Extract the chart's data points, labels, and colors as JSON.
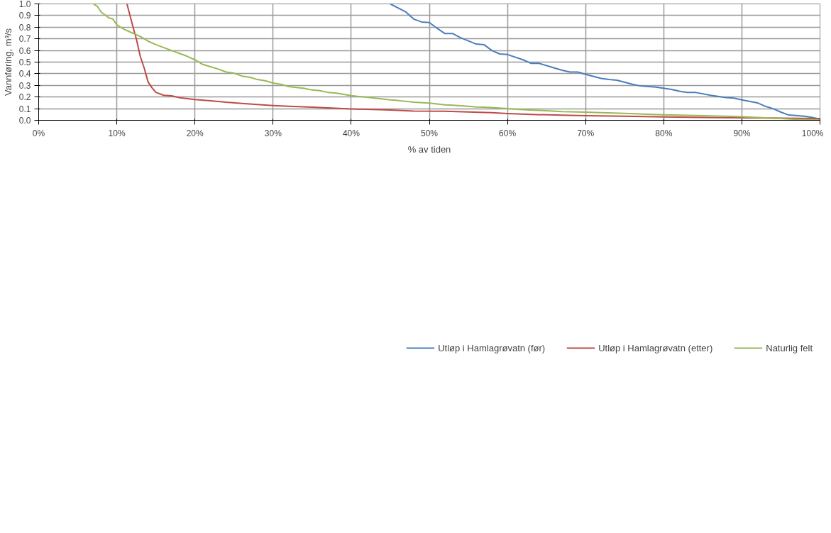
{
  "chart_data": {
    "type": "line",
    "xlabel": "% av tiden",
    "ylabel": "Vannføring, m³/s",
    "xlim": [
      0,
      100
    ],
    "ylim": [
      0,
      1.0
    ],
    "xticks": [
      {
        "value": 0,
        "label": "0%"
      },
      {
        "value": 10,
        "label": "10%"
      },
      {
        "value": 20,
        "label": "20%"
      },
      {
        "value": 30,
        "label": "30%"
      },
      {
        "value": 40,
        "label": "40%"
      },
      {
        "value": 50,
        "label": "50%"
      },
      {
        "value": 60,
        "label": "60%"
      },
      {
        "value": 70,
        "label": "70%"
      },
      {
        "value": 80,
        "label": "80%"
      },
      {
        "value": 90,
        "label": "90%"
      },
      {
        "value": 100,
        "label": "100%"
      }
    ],
    "yticks": [
      {
        "value": 0,
        "label": "0.0"
      },
      {
        "value": 0.1,
        "label": "0.1"
      },
      {
        "value": 0.2,
        "label": "0.2"
      },
      {
        "value": 0.3,
        "label": "0.3"
      },
      {
        "value": 0.4,
        "label": "0.4"
      },
      {
        "value": 0.5,
        "label": "0.5"
      },
      {
        "value": 0.6,
        "label": "0.6"
      },
      {
        "value": 0.7,
        "label": "0.7"
      },
      {
        "value": 0.8,
        "label": "0.8"
      },
      {
        "value": 0.9,
        "label": "0.9"
      },
      {
        "value": 1.0,
        "label": "1.0"
      }
    ],
    "grid": true,
    "legend": "bottom",
    "marker": "none",
    "line_style": "solid",
    "series": [
      {
        "name": "Utløp i Hamlagrøvatn (før)",
        "color": "#4a7ebb",
        "x": [
          45,
          47,
          48,
          49,
          50,
          51,
          52,
          53,
          54,
          56,
          57,
          58,
          59,
          60,
          62,
          63,
          64,
          66,
          67,
          68,
          69,
          70,
          72,
          73,
          74,
          76,
          77,
          79,
          81,
          82,
          83,
          84,
          86,
          88,
          89,
          90,
          92,
          93,
          94,
          95,
          96,
          98,
          99,
          100
        ],
        "values": [
          1.0,
          0.93,
          0.87,
          0.845,
          0.84,
          0.79,
          0.745,
          0.745,
          0.71,
          0.655,
          0.65,
          0.6,
          0.57,
          0.565,
          0.52,
          0.49,
          0.49,
          0.45,
          0.43,
          0.415,
          0.415,
          0.395,
          0.36,
          0.35,
          0.345,
          0.31,
          0.295,
          0.285,
          0.265,
          0.25,
          0.24,
          0.24,
          0.215,
          0.195,
          0.19,
          0.175,
          0.15,
          0.12,
          0.1,
          0.07,
          0.045,
          0.035,
          0.025,
          0.01
        ]
      },
      {
        "name": "Utløp i Hamlagrøvatn (etter)",
        "color": "#be4b48",
        "x": [
          11.3,
          12,
          12.5,
          13,
          13.5,
          14,
          14.5,
          15,
          16,
          17,
          18,
          20,
          22,
          24,
          26,
          28,
          30,
          32,
          35,
          38,
          40,
          45,
          48,
          52,
          55,
          58,
          60,
          63,
          67,
          70,
          75,
          80,
          85,
          90,
          95,
          100
        ],
        "values": [
          1.0,
          0.82,
          0.7,
          0.55,
          0.45,
          0.33,
          0.28,
          0.24,
          0.215,
          0.21,
          0.195,
          0.178,
          0.168,
          0.155,
          0.145,
          0.135,
          0.127,
          0.12,
          0.113,
          0.104,
          0.098,
          0.088,
          0.08,
          0.077,
          0.072,
          0.065,
          0.058,
          0.05,
          0.044,
          0.04,
          0.035,
          0.029,
          0.025,
          0.022,
          0.018,
          0.015
        ]
      },
      {
        "name": "Naturlig felt",
        "color": "#98b954",
        "x": [
          7,
          7.5,
          8,
          9,
          9.5,
          10,
          11,
          12,
          13,
          14,
          15,
          17,
          19,
          20,
          21,
          22,
          23,
          24,
          25,
          26,
          27,
          28,
          29,
          30,
          31,
          32,
          34,
          35,
          36,
          37,
          38,
          40,
          41,
          43,
          45,
          46,
          48,
          50,
          52,
          53,
          55,
          56,
          57,
          60,
          62,
          63,
          65,
          67,
          70,
          72,
          75,
          78,
          80,
          85,
          88,
          90,
          92,
          95,
          97,
          100
        ],
        "values": [
          1.0,
          0.98,
          0.93,
          0.88,
          0.87,
          0.82,
          0.78,
          0.75,
          0.72,
          0.68,
          0.65,
          0.6,
          0.55,
          0.52,
          0.48,
          0.46,
          0.44,
          0.415,
          0.405,
          0.38,
          0.37,
          0.35,
          0.34,
          0.32,
          0.31,
          0.29,
          0.275,
          0.26,
          0.255,
          0.24,
          0.235,
          0.212,
          0.205,
          0.19,
          0.175,
          0.17,
          0.155,
          0.148,
          0.133,
          0.13,
          0.12,
          0.115,
          0.113,
          0.1,
          0.092,
          0.088,
          0.083,
          0.075,
          0.07,
          0.065,
          0.06,
          0.052,
          0.048,
          0.04,
          0.035,
          0.03,
          0.025,
          0.015,
          0.008,
          0.003
        ]
      }
    ]
  }
}
